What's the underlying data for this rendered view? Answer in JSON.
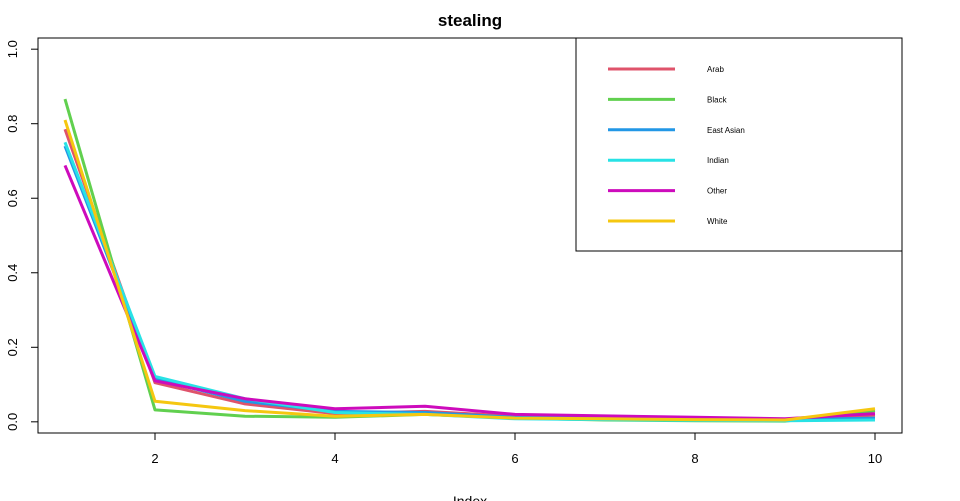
{
  "chart_data": {
    "type": "line",
    "title": "stealing",
    "xlabel": "Index",
    "ylabel": "",
    "xlim": [
      0.7,
      10.3
    ],
    "ylim": [
      -0.03,
      1.03
    ],
    "x_ticks": [
      2,
      4,
      6,
      8,
      10
    ],
    "y_ticks": [
      0.0,
      0.2,
      0.4,
      0.6,
      0.8,
      1.0
    ],
    "x_tick_labels": [
      "2",
      "4",
      "6",
      "8",
      "10"
    ],
    "y_tick_labels": [
      "0.0",
      "0.2",
      "0.4",
      "0.6",
      "0.8",
      "1.0"
    ],
    "grid": false,
    "legend_position": "top-right",
    "x": [
      1,
      2,
      3,
      4,
      5,
      6,
      7,
      8,
      9,
      10
    ],
    "series": [
      {
        "name": "Arab",
        "color": "#DF536B",
        "values": [
          0.785,
          0.105,
          0.048,
          0.022,
          0.028,
          0.015,
          0.012,
          0.008,
          0.006,
          0.018
        ]
      },
      {
        "name": "Black",
        "color": "#61D04F",
        "values": [
          0.866,
          0.032,
          0.015,
          0.012,
          0.02,
          0.01,
          0.005,
          0.003,
          0.002,
          0.03
        ]
      },
      {
        "name": "East Asian",
        "color": "#2297E6",
        "values": [
          0.74,
          0.115,
          0.055,
          0.028,
          0.025,
          0.012,
          0.01,
          0.008,
          0.006,
          0.01
        ]
      },
      {
        "name": "Indian",
        "color": "#28E2E5",
        "values": [
          0.75,
          0.122,
          0.062,
          0.025,
          0.02,
          0.008,
          0.006,
          0.004,
          0.003,
          0.005
        ]
      },
      {
        "name": "Other",
        "color": "#CD0BBC",
        "values": [
          0.688,
          0.11,
          0.062,
          0.035,
          0.042,
          0.02,
          0.016,
          0.012,
          0.008,
          0.022
        ]
      },
      {
        "name": "White",
        "color": "#F5C710",
        "values": [
          0.81,
          0.055,
          0.03,
          0.015,
          0.02,
          0.01,
          0.008,
          0.006,
          0.005,
          0.035
        ]
      }
    ]
  }
}
